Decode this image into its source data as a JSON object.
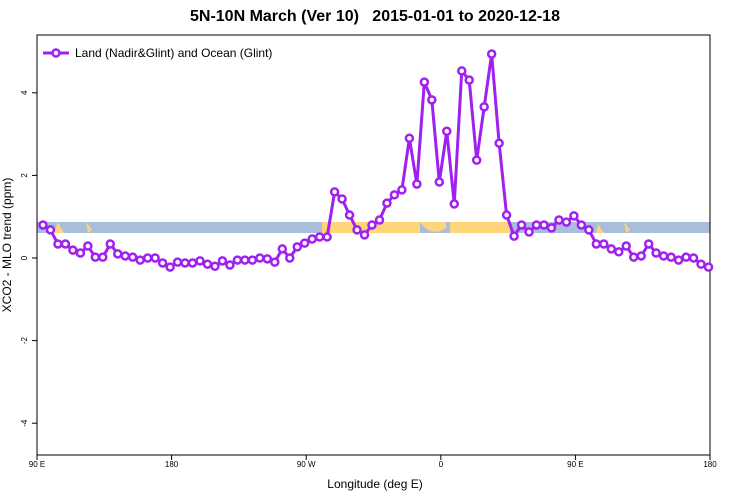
{
  "chart_data": {
    "type": "line",
    "title": "5N-10N March (Ver 10)   2015-01-01 to 2020-12-18",
    "x_label": "Longitude (deg E)",
    "y_label": "XCO2 - MLO trend (ppm)",
    "x": [
      94,
      99,
      104,
      109,
      114,
      119,
      124,
      129,
      134,
      139,
      144,
      149,
      154,
      159,
      164,
      169,
      174,
      179,
      184,
      189,
      194,
      199,
      204,
      209,
      214,
      219,
      224,
      229,
      234,
      239,
      244,
      249,
      254,
      259,
      264,
      269,
      274,
      279,
      284,
      289,
      294,
      299,
      304,
      309,
      314,
      319,
      324,
      329,
      334,
      339,
      344,
      349,
      354,
      359,
      364,
      369,
      374,
      379,
      384,
      389,
      394,
      399,
      404,
      409,
      414,
      419,
      424,
      429,
      434,
      439,
      444,
      449,
      454,
      459,
      464,
      469,
      474,
      479,
      484,
      489,
      494,
      499,
      504,
      509,
      514,
      519,
      524,
      529,
      534,
      539
    ],
    "series": [
      {
        "name": "Land (Nadir&Glint) and Ocean (Glint)",
        "color": "#a020f0",
        "values": [
          0.8,
          0.68,
          0.34,
          0.34,
          0.19,
          0.12,
          0.29,
          0.02,
          0.02,
          0.34,
          0.1,
          0.05,
          0.02,
          -0.05,
          0,
          0,
          -0.12,
          -0.22,
          -0.1,
          -0.12,
          -0.12,
          -0.07,
          -0.15,
          -0.2,
          -0.07,
          -0.17,
          -0.05,
          -0.05,
          -0.05,
          0,
          -0.02,
          -0.1,
          0.22,
          0,
          0.27,
          0.36,
          0.46,
          0.51,
          0.51,
          1.6,
          1.43,
          1.04,
          0.68,
          0.56,
          0.8,
          0.92,
          1.33,
          1.53,
          1.65,
          2.9,
          1.79,
          4.26,
          3.83,
          1.84,
          3.07,
          1.31,
          4.53,
          4.31,
          2.37,
          3.66,
          4.94,
          2.78,
          1.04,
          0.53,
          0.8,
          0.63,
          0.8,
          0.8,
          0.73,
          0.92,
          0.87,
          1.02,
          0.8,
          0.68,
          0.34,
          0.34,
          0.22,
          0.15,
          0.29,
          0.02,
          0.05,
          0.34,
          0.12,
          0.05,
          0.02,
          -0.05,
          0.02,
          0,
          -0.15,
          -0.22
        ]
      }
    ],
    "xlim": [
      90,
      540
    ],
    "xticks": [
      {
        "value": 90,
        "label": "90 E"
      },
      180,
      {
        "value": 270,
        "label": "90 W"
      },
      {
        "value": 360,
        "label": "0"
      },
      {
        "value": 450,
        "label": "90 E"
      },
      {
        "value": 540,
        "label": "180"
      }
    ],
    "ylim": [
      -4.77,
      5.4
    ],
    "yticks": [
      -4,
      -2,
      0,
      2,
      4
    ],
    "legend_position": "top-left"
  }
}
